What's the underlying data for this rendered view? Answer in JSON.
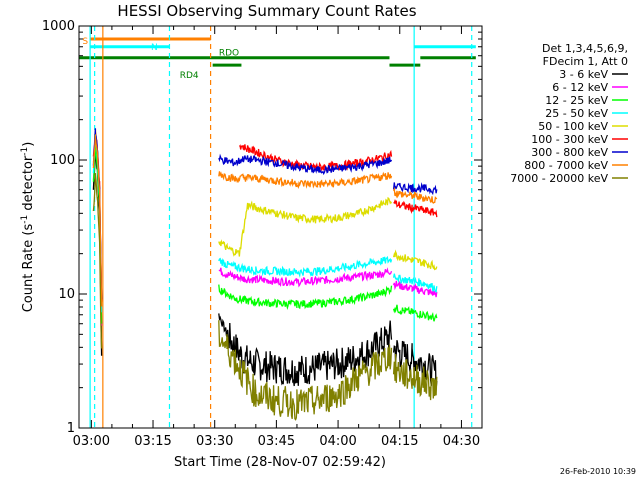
{
  "chart_data": {
    "type": "line",
    "title": "HESSI Observing Summary Count Rates",
    "xlabel": "Start Time (28-Nov-07 02:59:42)",
    "ylabel_main": "Count Rate (s",
    "ylabel_sup1": "-1",
    "ylabel_mid": " detector",
    "ylabel_sup2": "-1",
    "ylabel_end": ")",
    "y_scale": "log",
    "ylim": [
      1,
      1000
    ],
    "xlim_minutes": [
      -3,
      95
    ],
    "x_ticks": [
      {
        "t": 0,
        "label": "03:00"
      },
      {
        "t": 15,
        "label": "03:15"
      },
      {
        "t": 30,
        "label": "03:30"
      },
      {
        "t": 45,
        "label": "03:45"
      },
      {
        "t": 60,
        "label": "04:00"
      },
      {
        "t": 75,
        "label": "04:15"
      },
      {
        "t": 90,
        "label": "04:30"
      }
    ],
    "y_ticks": [
      {
        "v": 1,
        "label": "1"
      },
      {
        "v": 10,
        "label": "10"
      },
      {
        "v": 100,
        "label": "100"
      },
      {
        "v": 1000,
        "label": "1000"
      }
    ],
    "legend_header": [
      "Det 1,3,4,5,6,9,",
      "FDecim 1, Att 0"
    ],
    "legend_placement": "right",
    "series": [
      {
        "name": "3 - 6 keV",
        "color": "#000000",
        "segments": [
          {
            "x": [
              0.5,
              1,
              1.5,
              2,
              2.5
            ],
            "y": [
              60,
              120,
              80,
              40,
              4
            ]
          },
          {
            "x": [
              31,
              33,
              35,
              37,
              40,
              45,
              50,
              55,
              60,
              65,
              70,
              73
            ],
            "y": [
              7,
              5,
              4,
              3.3,
              3,
              2.8,
              2.7,
              2.8,
              3,
              3.4,
              4.2,
              5
            ]
          },
          {
            "x": [
              73.5,
              75,
              78,
              81,
              84
            ],
            "y": [
              4,
              3.6,
              3.3,
              3,
              2.5
            ]
          }
        ]
      },
      {
        "name": "6 - 12 keV",
        "color": "#ff00ff",
        "segments": [
          {
            "x": [
              0.5,
              1,
              1.5,
              2,
              2.5
            ],
            "y": [
              70,
              140,
              90,
              50,
              6
            ]
          },
          {
            "x": [
              31,
              33,
              35,
              37,
              40,
              45,
              50,
              55,
              60,
              65,
              70,
              73
            ],
            "y": [
              15,
              14,
              13.5,
              13,
              12.8,
              12.5,
              12.3,
              12.5,
              13,
              13.5,
              14,
              15
            ]
          },
          {
            "x": [
              73.5,
              75,
              78,
              81,
              84
            ],
            "y": [
              12,
              11.5,
              11,
              10.5,
              10
            ]
          }
        ]
      },
      {
        "name": "12 - 25 keV",
        "color": "#00ff00",
        "segments": [
          {
            "x": [
              0.5,
              1,
              1.5,
              2,
              2.5
            ],
            "y": [
              65,
              130,
              85,
              45,
              5
            ]
          },
          {
            "x": [
              31,
              33,
              35,
              37,
              40,
              45,
              50,
              55,
              60,
              65,
              70,
              73
            ],
            "y": [
              11,
              10,
              9.3,
              9,
              8.7,
              8.5,
              8.4,
              8.5,
              8.8,
              9.3,
              10,
              11
            ]
          },
          {
            "x": [
              73.5,
              75,
              78,
              81,
              84
            ],
            "y": [
              8,
              7.6,
              7.3,
              7,
              6.5
            ]
          }
        ]
      },
      {
        "name": "25 - 50 keV",
        "color": "#00ffff",
        "segments": [
          {
            "x": [
              0.5,
              1,
              1.5,
              2,
              2.5
            ],
            "y": [
              80,
              150,
              100,
              55,
              7
            ]
          },
          {
            "x": [
              31,
              33,
              35,
              37,
              40,
              45,
              50,
              55,
              60,
              65,
              70,
              73
            ],
            "y": [
              18,
              16.5,
              16,
              15.5,
              15,
              14.8,
              14.6,
              14.8,
              15.5,
              16.5,
              17.5,
              18
            ]
          },
          {
            "x": [
              73.5,
              75,
              78,
              81,
              84
            ],
            "y": [
              14,
              13,
              12.5,
              12,
              11
            ]
          }
        ]
      },
      {
        "name": "50 - 100 keV",
        "color": "#dddd00",
        "segments": [
          {
            "x": [
              0.5,
              1,
              1.5,
              2,
              2.5
            ],
            "y": [
              90,
              160,
              110,
              60,
              8
            ]
          },
          {
            "x": [
              31,
              33,
              36,
              38,
              40,
              45,
              50,
              55,
              60,
              65,
              70,
              73
            ],
            "y": [
              25,
              22,
              20,
              46,
              44,
              40,
              37,
              36,
              37,
              40,
              46,
              50
            ]
          },
          {
            "x": [
              73.5,
              75,
              78,
              81,
              84
            ],
            "y": [
              20,
              19,
              18,
              17,
              16
            ]
          }
        ]
      },
      {
        "name": "100 - 300 keV",
        "color": "#ff0000",
        "segments": [
          {
            "x": [
              0.5,
              1,
              1.5,
              2,
              2.5
            ],
            "y": [
              100,
              170,
              120,
              65,
              9
            ]
          },
          {
            "x": [
              36,
              37,
              40,
              45,
              50,
              55,
              60,
              65,
              70,
              73
            ],
            "y": [
              130,
              125,
              115,
              100,
              92,
              88,
              90,
              95,
              103,
              110
            ]
          },
          {
            "x": [
              73.5,
              75,
              78,
              81,
              84
            ],
            "y": [
              48,
              46,
              44,
              42,
              40
            ]
          }
        ]
      },
      {
        "name": "300 - 800 keV",
        "color": "#0000cc",
        "segments": [
          {
            "x": [
              0.5,
              1,
              1.5,
              2,
              2.5
            ],
            "y": [
              95,
              165,
              115,
              62,
              9
            ]
          },
          {
            "x": [
              31,
              33,
              35,
              37,
              40,
              45,
              50,
              55,
              60,
              65,
              70,
              73
            ],
            "y": [
              102,
              98,
              95,
              102,
              100,
              95,
              88,
              84,
              86,
              90,
              95,
              100
            ]
          },
          {
            "x": [
              73.5,
              75,
              78,
              81,
              84
            ],
            "y": [
              64,
              63,
              62,
              61,
              60
            ]
          }
        ]
      },
      {
        "name": "800 - 7000 keV",
        "color": "#ff8000",
        "segments": [
          {
            "x": [
              0.5,
              1,
              1.5,
              2,
              2.5
            ],
            "y": [
              85,
              155,
              105,
              58,
              8
            ]
          },
          {
            "x": [
              31,
              33,
              35,
              37,
              40,
              45,
              50,
              55,
              60,
              65,
              70,
              73
            ],
            "y": [
              80,
              75,
              72,
              74,
              73,
              70,
              67,
              66,
              67,
              70,
              74,
              78
            ]
          },
          {
            "x": [
              73.5,
              75,
              78,
              81,
              84
            ],
            "y": [
              58,
              56,
              54,
              52,
              50
            ]
          }
        ]
      },
      {
        "name": "7000 - 20000 keV",
        "color": "#808000",
        "segments": [
          {
            "x": [
              0.5,
              1,
              1.5,
              2,
              2.5
            ],
            "y": [
              40,
              80,
              50,
              25,
              3
            ]
          },
          {
            "x": [
              31,
              33,
              35,
              37,
              40,
              45,
              50,
              55,
              60,
              65,
              70,
              73
            ],
            "y": [
              5,
              4,
              3.2,
              2.5,
              1.8,
              1.6,
              1.5,
              1.6,
              1.8,
              2.4,
              3,
              3.6
            ]
          },
          {
            "x": [
              73.5,
              75,
              78,
              81,
              84
            ],
            "y": [
              2.8,
              2.6,
              2.4,
              2.2,
              2
            ]
          }
        ]
      }
    ],
    "vlines": [
      {
        "t": -0.3,
        "color": "#00ffff",
        "style": "solid"
      },
      {
        "t": 0.8,
        "color": "#00ffff",
        "style": "dashed"
      },
      {
        "t": 2.8,
        "color": "#ff8000",
        "style": "solid"
      },
      {
        "t": 19,
        "color": "#00ffff",
        "style": "dashed"
      },
      {
        "t": 29,
        "color": "#ff8000",
        "style": "dashed"
      },
      {
        "t": 78.5,
        "color": "#00ffff",
        "style": "solid"
      },
      {
        "t": 92.5,
        "color": "#00ffff",
        "style": "dashed"
      }
    ],
    "flag_bars": [
      {
        "label": "S",
        "color": "#ff8000",
        "y": 800,
        "segments": [
          [
            -0.3,
            29
          ]
        ]
      },
      {
        "label": "N",
        "color": "#00ffff",
        "y": 700,
        "segments": [
          [
            -0.3,
            19
          ],
          [
            78.5,
            93.5
          ]
        ]
      },
      {
        "label": "RDO",
        "color": "#008000",
        "y": 580,
        "segments": [
          [
            -3,
            72.5
          ],
          [
            80,
            93.5
          ]
        ]
      },
      {
        "label": "RD4",
        "color": "#008000",
        "y": 510,
        "segments": [
          [
            29.5,
            36.5
          ],
          [
            72.5,
            80
          ]
        ]
      }
    ],
    "date_stamp": "26-Feb-2010 10:39"
  }
}
